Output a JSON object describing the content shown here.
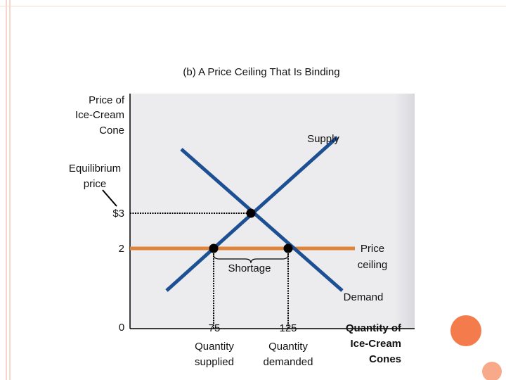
{
  "title": "(b) A Price Ceiling That Is Binding",
  "y_axis_label": [
    "Price of",
    "Ice-Cream",
    "Cone"
  ],
  "x_axis_label": [
    "Quantity of",
    "Ice-Cream",
    "Cones"
  ],
  "supply_label": "Supply",
  "demand_label": "Demand",
  "equilibrium_label": [
    "Equilibrium",
    "price"
  ],
  "price_ceiling_label": [
    "Price",
    "ceiling"
  ],
  "shortage_label": "Shortage",
  "y_ticks": [
    "$3",
    "2"
  ],
  "origin_label": "0",
  "x_ticks": [
    {
      "value": "75",
      "caption": [
        "Quantity",
        "supplied"
      ]
    },
    {
      "value": "125",
      "caption": [
        "Quantity",
        "demanded"
      ]
    }
  ]
}
